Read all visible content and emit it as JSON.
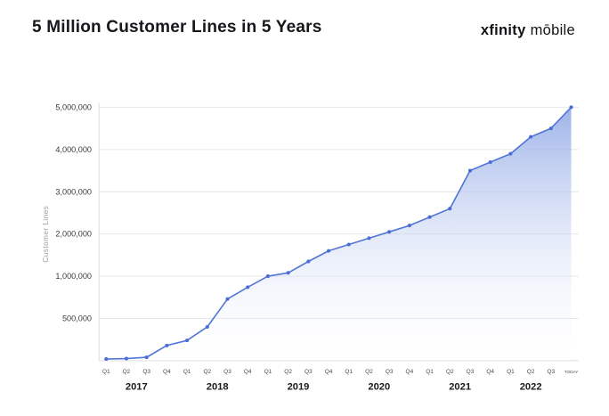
{
  "header": {
    "title": "5 Million Customer Lines in 5 Years",
    "logo_brand": "xfinity",
    "logo_product": "mōbile"
  },
  "chart_data": {
    "type": "area",
    "title": "5 Million Customer Lines in 5 Years",
    "xlabel": "",
    "ylabel": "Customer Lines",
    "legend": "none",
    "grid": "horizontal",
    "y_axis_note": "non-linear axis: equal pixel spacing between listed tick values",
    "y_scale_anchors": [
      0,
      500000,
      1000000,
      2000000,
      3000000,
      4000000,
      5000000
    ],
    "y_ticks": [
      {
        "value": 500000,
        "label": "500,000"
      },
      {
        "value": 1000000,
        "label": "1,000,000"
      },
      {
        "value": 2000000,
        "label": "2,000,000"
      },
      {
        "value": 3000000,
        "label": "3,000,000"
      },
      {
        "value": 4000000,
        "label": "4,000,000"
      },
      {
        "value": 5000000,
        "label": "5,000,000"
      }
    ],
    "x_labels": [
      "Q1",
      "Q2",
      "Q3",
      "Q4",
      "Q1",
      "Q2",
      "Q3",
      "Q4",
      "Q1",
      "Q2",
      "Q3",
      "Q4",
      "Q1",
      "Q2",
      "Q3",
      "Q4",
      "Q1",
      "Q2",
      "Q3",
      "Q4",
      "Q1",
      "Q2",
      "Q3",
      "TODAY"
    ],
    "year_groups": [
      {
        "label": "2017",
        "start": 0,
        "end": 3
      },
      {
        "label": "2018",
        "start": 4,
        "end": 7
      },
      {
        "label": "2019",
        "start": 8,
        "end": 11
      },
      {
        "label": "2020",
        "start": 12,
        "end": 15
      },
      {
        "label": "2021",
        "start": 16,
        "end": 19
      },
      {
        "label": "2022",
        "start": 20,
        "end": 22
      }
    ],
    "values": [
      20000,
      25000,
      40000,
      180000,
      240000,
      400000,
      730000,
      870000,
      1000000,
      1080000,
      1350000,
      1600000,
      1750000,
      1900000,
      2050000,
      2200000,
      2400000,
      2600000,
      3500000,
      3700000,
      3900000,
      4300000,
      4500000,
      5000000
    ],
    "colors": {
      "line": "#5276d8",
      "point": "#4a6cd4",
      "fill_top": "#93abe6",
      "fill_bottom": "#ffffff",
      "grid": "#e6e6e6",
      "axis_line": "#dcdcdc",
      "tick_text": "#3a3a3a",
      "quarter_text": "#4a4a4a",
      "year_text": "#1a1a1a",
      "y_title_text": "#9b9b9b"
    }
  }
}
